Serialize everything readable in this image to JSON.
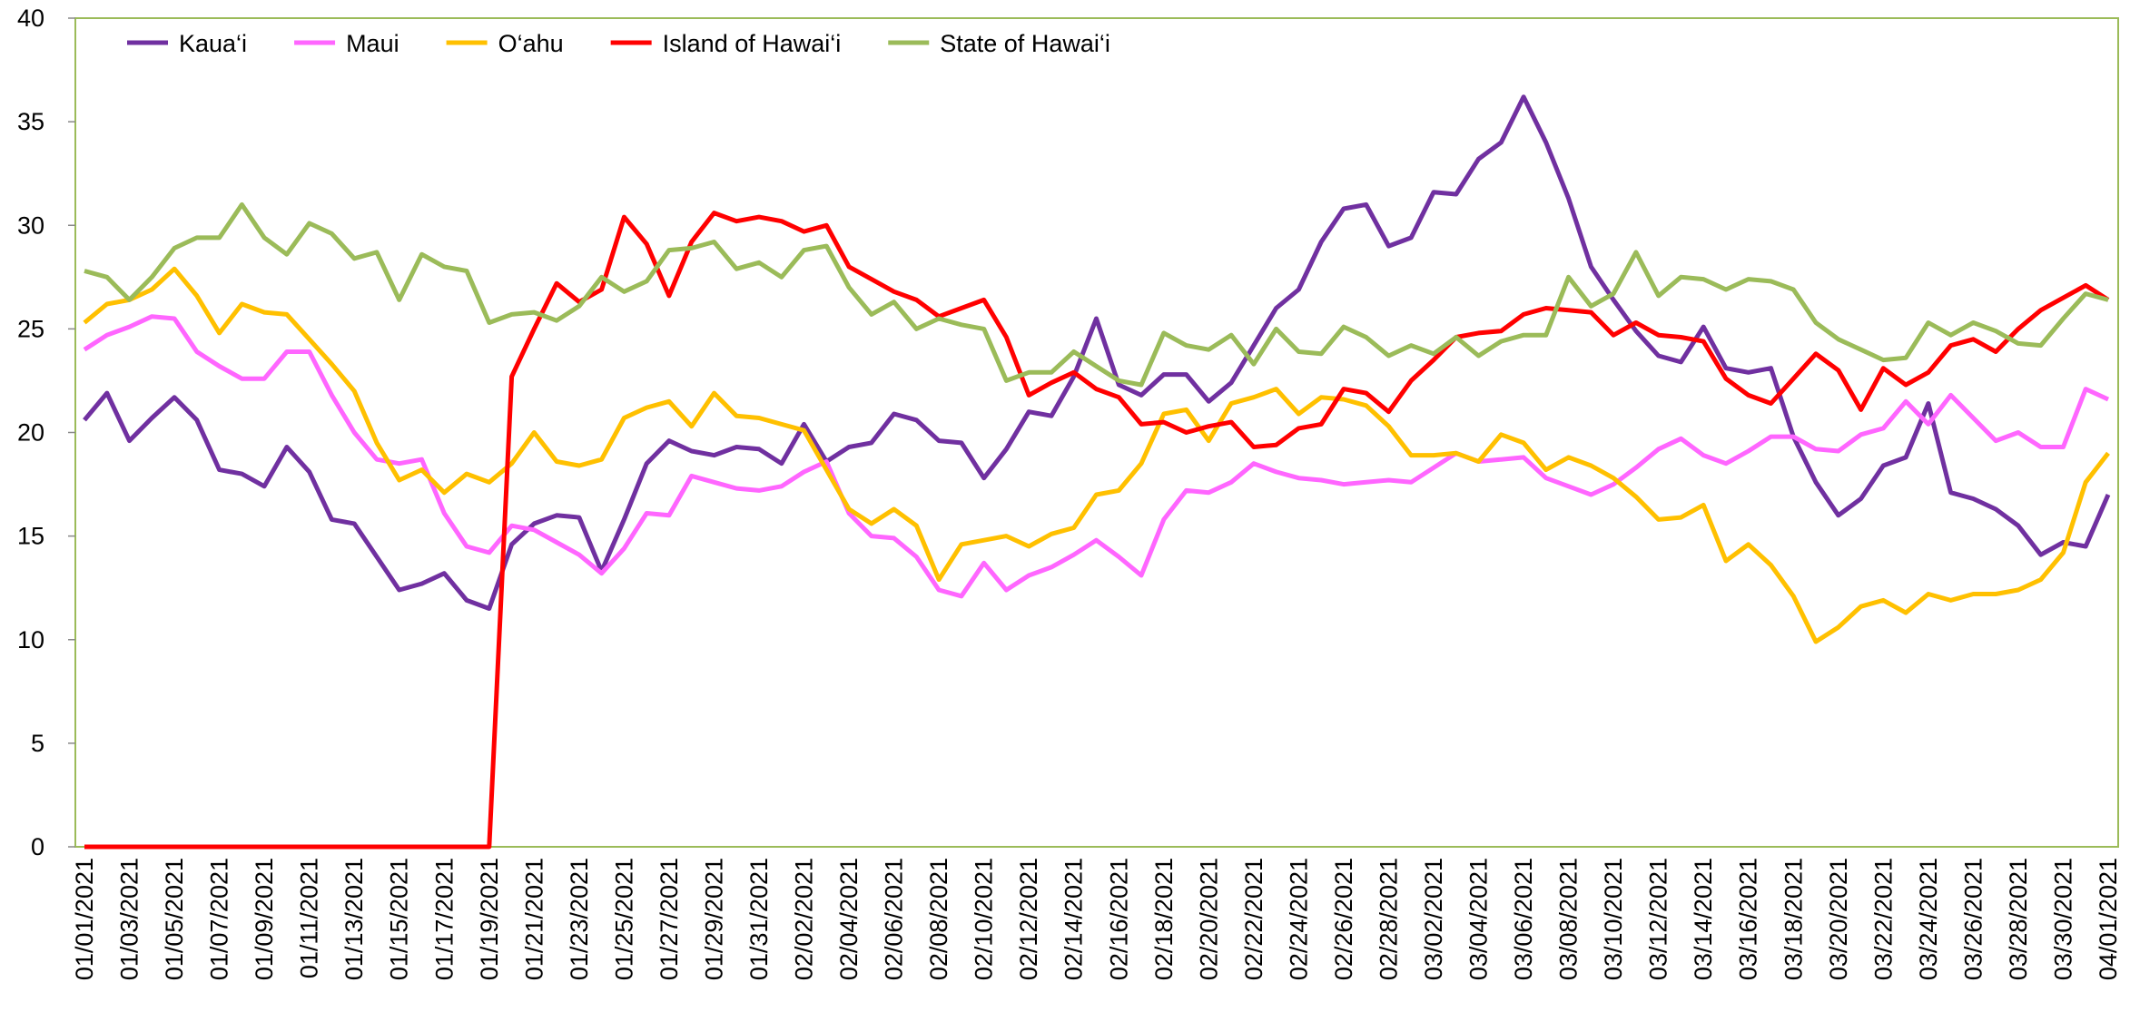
{
  "chart_data": {
    "type": "line",
    "categories": [
      "01/01/2021",
      null,
      "01/03/2021",
      null,
      "01/05/2021",
      null,
      "01/07/2021",
      null,
      "01/09/2021",
      null,
      "01/11/2021",
      null,
      "01/13/2021",
      null,
      "01/15/2021",
      null,
      "01/17/2021",
      null,
      "01/19/2021",
      null,
      "01/21/2021",
      null,
      "01/23/2021",
      null,
      "01/25/2021",
      null,
      "01/27/2021",
      null,
      "01/29/2021",
      null,
      "01/31/2021",
      null,
      "02/02/2021",
      null,
      "02/04/2021",
      null,
      "02/06/2021",
      null,
      "02/08/2021",
      null,
      "02/10/2021",
      null,
      "02/12/2021",
      null,
      "02/14/2021",
      null,
      "02/16/2021",
      null,
      "02/18/2021",
      null,
      "02/20/2021",
      null,
      "02/22/2021",
      null,
      "02/24/2021",
      null,
      "02/26/2021",
      null,
      "02/28/2021",
      null,
      "03/02/2021",
      null,
      "03/04/2021",
      null,
      "03/06/2021",
      null,
      "03/08/2021",
      null,
      "03/10/2021",
      null,
      "03/12/2021",
      null,
      "03/14/2021",
      null,
      "03/16/2021",
      null,
      "03/18/2021",
      null,
      "03/20/2021",
      null,
      "03/22/2021",
      null,
      "03/24/2021",
      null,
      "03/26/2021",
      null,
      "03/28/2021",
      null,
      "03/30/2021",
      null,
      "04/01/2021"
    ],
    "series": [
      {
        "name": "Kaua‘i",
        "color": "#7030a0",
        "values": [
          20.6,
          21.9,
          19.6,
          20.7,
          21.7,
          20.6,
          18.2,
          18.0,
          17.4,
          19.3,
          18.1,
          15.8,
          15.6,
          14.0,
          12.4,
          12.7,
          13.2,
          11.9,
          11.5,
          14.6,
          15.6,
          16.0,
          15.9,
          13.3,
          15.8,
          18.5,
          19.6,
          19.1,
          18.9,
          19.3,
          19.2,
          18.5,
          20.4,
          18.6,
          19.3,
          19.5,
          20.9,
          20.6,
          19.6,
          19.5,
          17.8,
          19.2,
          21.0,
          20.8,
          22.7,
          25.5,
          22.3,
          21.8,
          22.8,
          22.8,
          21.5,
          22.4,
          24.2,
          26.0,
          26.9,
          29.2,
          30.8,
          31.0,
          29.0,
          29.4,
          31.6,
          31.5,
          33.2,
          34.0,
          36.2,
          34.0,
          31.3,
          28.0,
          26.4,
          24.9,
          23.7,
          23.4,
          25.1,
          23.1,
          22.9,
          23.1,
          19.8,
          17.6,
          16.0,
          16.8,
          18.4,
          18.8,
          21.4,
          17.1,
          16.8,
          16.3,
          15.5,
          14.1,
          14.7,
          14.5,
          17.0
        ]
      },
      {
        "name": "Maui",
        "color": "#ff66ff",
        "values": [
          24.0,
          24.7,
          25.1,
          25.6,
          25.5,
          23.9,
          23.2,
          22.6,
          22.6,
          23.9,
          23.9,
          21.8,
          20.0,
          18.7,
          18.5,
          18.7,
          16.1,
          14.5,
          14.2,
          15.5,
          15.3,
          14.7,
          14.1,
          13.2,
          14.4,
          16.1,
          16.0,
          17.9,
          17.6,
          17.3,
          17.2,
          17.4,
          18.1,
          18.6,
          16.1,
          15.0,
          14.9,
          14.0,
          12.4,
          12.1,
          13.7,
          12.4,
          13.1,
          13.5,
          14.1,
          14.8,
          14.0,
          13.1,
          15.8,
          17.2,
          17.1,
          17.6,
          18.5,
          18.1,
          17.8,
          17.7,
          17.5,
          17.6,
          17.7,
          17.6,
          18.3,
          19.0,
          18.6,
          18.7,
          18.8,
          17.8,
          17.4,
          17.0,
          17.5,
          18.3,
          19.2,
          19.7,
          18.9,
          18.5,
          19.1,
          19.8,
          19.8,
          19.2,
          19.1,
          19.9,
          20.2,
          21.5,
          20.4,
          21.8,
          20.7,
          19.6,
          20.0,
          19.3,
          19.3,
          22.1,
          21.6
        ]
      },
      {
        "name": "O‘ahu",
        "color": "#ffc000",
        "values": [
          25.3,
          26.2,
          26.4,
          26.9,
          27.9,
          26.6,
          24.8,
          26.2,
          25.8,
          25.7,
          24.5,
          23.3,
          22.0,
          19.5,
          17.7,
          18.2,
          17.1,
          18.0,
          17.6,
          18.5,
          20.0,
          18.6,
          18.4,
          18.7,
          20.7,
          21.2,
          21.5,
          20.3,
          21.9,
          20.8,
          20.7,
          20.4,
          20.1,
          18.2,
          16.3,
          15.6,
          16.3,
          15.5,
          12.9,
          14.6,
          14.8,
          15.0,
          14.5,
          15.1,
          15.4,
          17.0,
          17.2,
          18.5,
          20.9,
          21.1,
          19.6,
          21.4,
          21.7,
          22.1,
          20.9,
          21.7,
          21.6,
          21.3,
          20.3,
          18.9,
          18.9,
          19.0,
          18.6,
          19.9,
          19.5,
          18.2,
          18.8,
          18.4,
          17.8,
          16.9,
          15.8,
          15.9,
          16.5,
          13.8,
          14.6,
          13.6,
          12.1,
          9.9,
          10.6,
          11.6,
          11.9,
          11.3,
          12.2,
          11.9,
          12.2,
          12.2,
          12.4,
          12.9,
          14.2,
          17.6,
          19.0
        ]
      },
      {
        "name": "Island of Hawai‘i",
        "color": "#ff0000",
        "values": [
          0,
          0,
          0,
          0,
          0,
          0,
          0,
          0,
          0,
          0,
          0,
          0,
          0,
          0,
          0,
          0,
          0,
          0,
          0,
          22.7,
          25.0,
          27.2,
          26.3,
          26.9,
          30.4,
          29.1,
          26.6,
          29.2,
          30.6,
          30.2,
          30.4,
          30.2,
          29.7,
          30.0,
          28.0,
          27.4,
          26.8,
          26.4,
          25.6,
          26.0,
          26.4,
          24.6,
          21.8,
          22.4,
          22.9,
          22.1,
          21.7,
          20.4,
          20.5,
          20.0,
          20.3,
          20.5,
          19.3,
          19.4,
          20.2,
          20.4,
          22.1,
          21.9,
          21.0,
          22.5,
          23.5,
          24.6,
          24.8,
          24.9,
          25.7,
          26.0,
          25.9,
          25.8,
          24.7,
          25.3,
          24.7,
          24.6,
          24.4,
          22.6,
          21.8,
          21.4,
          22.6,
          23.8,
          23.0,
          21.1,
          23.1,
          22.3,
          22.9,
          24.2,
          24.5,
          23.9,
          25.0,
          25.9,
          26.5,
          27.1,
          26.4
        ]
      },
      {
        "name": "State of Hawai‘i",
        "color": "#9bbb59",
        "values": [
          27.8,
          27.5,
          26.4,
          27.5,
          28.9,
          29.4,
          29.4,
          31.0,
          29.4,
          28.6,
          30.1,
          29.6,
          28.4,
          28.7,
          26.4,
          28.6,
          28.0,
          27.8,
          25.3,
          25.7,
          25.8,
          25.4,
          26.1,
          27.5,
          26.8,
          27.3,
          28.8,
          28.9,
          29.2,
          27.9,
          28.2,
          27.5,
          28.8,
          29.0,
          27.0,
          25.7,
          26.3,
          25.0,
          25.5,
          25.2,
          25.0,
          22.5,
          22.9,
          22.9,
          23.9,
          23.2,
          22.5,
          22.3,
          24.8,
          24.2,
          24.0,
          24.7,
          23.3,
          25.0,
          23.9,
          23.8,
          25.1,
          24.6,
          23.7,
          24.2,
          23.8,
          24.6,
          23.7,
          24.4,
          24.7,
          24.7,
          27.5,
          26.1,
          26.7,
          28.7,
          26.6,
          27.5,
          27.4,
          26.9,
          27.4,
          27.3,
          26.9,
          25.3,
          24.5,
          24.0,
          23.5,
          23.6,
          25.3,
          24.7,
          25.3,
          24.9,
          24.3,
          24.2,
          25.5,
          26.7,
          26.4
        ]
      }
    ],
    "ylim": [
      0,
      40
    ],
    "yticks": [
      0,
      5,
      10,
      15,
      20,
      25,
      30,
      35,
      40
    ],
    "grid": false,
    "legend": "top-left"
  }
}
